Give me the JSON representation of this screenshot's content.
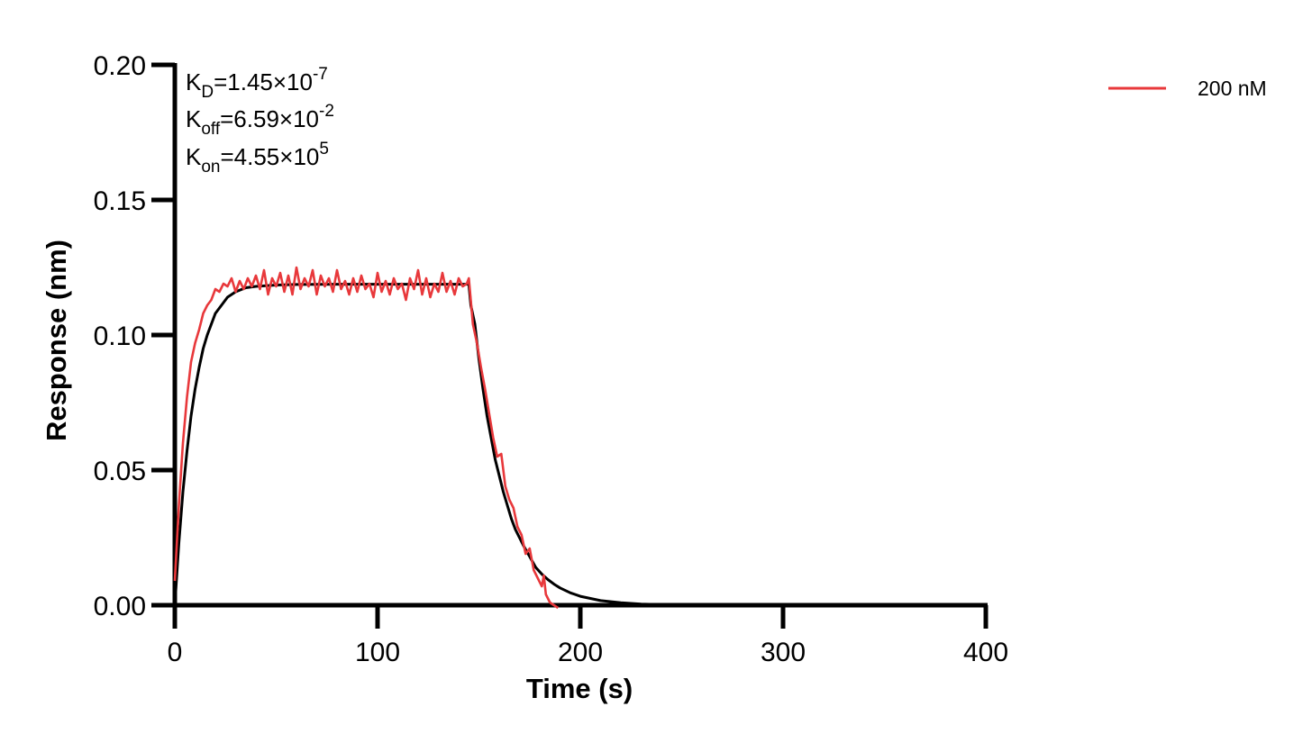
{
  "chart_data": {
    "type": "line",
    "xlabel": "Time (s)",
    "ylabel": "Response (nm)",
    "xlim": [
      0,
      400
    ],
    "ylim": [
      0,
      0.2
    ],
    "x_ticks": [
      "0",
      "100",
      "200",
      "300",
      "400"
    ],
    "y_ticks": [
      "0.00",
      "0.05",
      "0.10",
      "0.15",
      "0.20"
    ],
    "grid": false,
    "legend_position": "top-right",
    "annotations": [
      {
        "base": "K",
        "sub": "D",
        "value": "=1.45×10",
        "exp": "-7"
      },
      {
        "base": "K",
        "sub": "off",
        "value": "=6.59×10",
        "exp": "-2"
      },
      {
        "base": "K",
        "sub": "on",
        "value": "=4.55×10",
        "exp": "5"
      }
    ],
    "series": [
      {
        "name": "200 nM",
        "color": "#e8383b",
        "kind": "measured",
        "x": [
          0,
          2,
          4,
          6,
          8,
          10,
          12,
          14,
          16,
          18,
          20,
          22,
          24,
          26,
          28,
          30,
          32,
          34,
          36,
          38,
          40,
          42,
          44,
          46,
          48,
          50,
          52,
          54,
          56,
          58,
          60,
          62,
          64,
          66,
          68,
          70,
          72,
          74,
          76,
          78,
          80,
          82,
          84,
          86,
          88,
          90,
          92,
          94,
          96,
          98,
          100,
          102,
          104,
          106,
          108,
          110,
          112,
          114,
          116,
          118,
          120,
          122,
          124,
          126,
          128,
          130,
          132,
          134,
          136,
          138,
          140,
          142,
          144,
          145,
          147,
          149,
          151,
          153,
          155,
          157,
          159,
          161,
          163,
          165,
          167,
          169,
          171,
          173,
          175,
          177,
          179,
          181,
          182,
          183,
          185,
          187,
          189
        ],
        "y": [
          0.009,
          0.037,
          0.06,
          0.077,
          0.09,
          0.097,
          0.102,
          0.108,
          0.111,
          0.113,
          0.117,
          0.116,
          0.119,
          0.118,
          0.121,
          0.116,
          0.12,
          0.117,
          0.121,
          0.118,
          0.122,
          0.117,
          0.124,
          0.115,
          0.121,
          0.118,
          0.123,
          0.116,
          0.122,
          0.115,
          0.125,
          0.117,
          0.121,
          0.118,
          0.124,
          0.115,
          0.122,
          0.118,
          0.121,
          0.116,
          0.124,
          0.117,
          0.12,
          0.115,
          0.121,
          0.116,
          0.122,
          0.117,
          0.119,
          0.114,
          0.123,
          0.116,
          0.12,
          0.115,
          0.121,
          0.117,
          0.119,
          0.113,
          0.121,
          0.117,
          0.124,
          0.115,
          0.121,
          0.114,
          0.119,
          0.116,
          0.123,
          0.116,
          0.12,
          0.115,
          0.121,
          0.118,
          0.119,
          0.121,
          0.104,
          0.097,
          0.088,
          0.08,
          0.071,
          0.062,
          0.055,
          0.056,
          0.044,
          0.039,
          0.036,
          0.029,
          0.026,
          0.019,
          0.021,
          0.013,
          0.01,
          0.007,
          0.011,
          0.004,
          0.001,
          0.0,
          -0.001
        ]
      },
      {
        "name": "",
        "color": "#000000",
        "kind": "fit",
        "x": [
          0,
          2,
          4,
          6,
          8,
          10,
          12,
          14,
          16,
          18,
          20,
          22,
          24,
          26,
          28,
          30,
          35,
          40,
          50,
          60,
          80,
          100,
          120,
          144,
          145,
          146,
          148,
          150,
          152,
          154,
          156,
          158,
          160,
          162,
          164,
          166,
          168,
          170,
          172,
          175,
          178,
          181,
          184,
          187,
          190,
          195,
          200,
          210,
          220,
          230,
          240,
          260,
          300,
          350,
          400
        ],
        "y": [
          0.0,
          0.023,
          0.042,
          0.057,
          0.07,
          0.08,
          0.088,
          0.095,
          0.1,
          0.104,
          0.108,
          0.11,
          0.112,
          0.114,
          0.115,
          0.116,
          0.1175,
          0.118,
          0.1185,
          0.1187,
          0.1188,
          0.1188,
          0.1188,
          0.1188,
          0.1188,
          0.111,
          0.104,
          0.091,
          0.08,
          0.07,
          0.062,
          0.054,
          0.048,
          0.042,
          0.037,
          0.032,
          0.028,
          0.025,
          0.022,
          0.018,
          0.014,
          0.0115,
          0.0095,
          0.0078,
          0.0064,
          0.0046,
          0.0033,
          0.0017,
          0.0009,
          0.0004,
          0.0002,
          0.0001,
          0.0,
          0.0,
          0.0
        ]
      }
    ]
  }
}
